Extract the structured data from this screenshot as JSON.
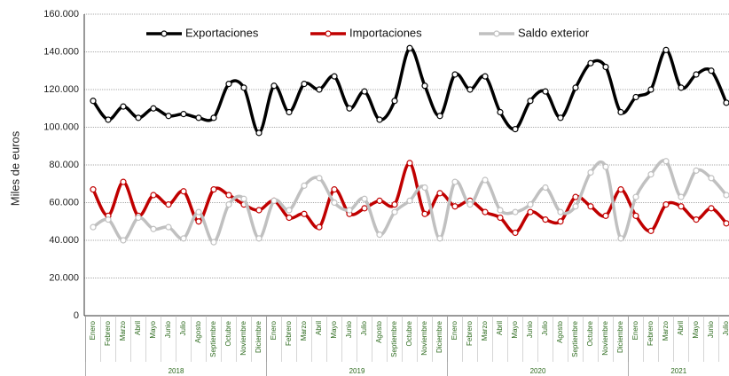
{
  "chart_data": {
    "type": "line",
    "y_label": "Miles de euros",
    "categories": [
      "Enero",
      "Febrero",
      "Marzo",
      "Abril",
      "Mayo",
      "Junio",
      "Julio",
      "Agosto",
      "Septiembre",
      "Octubre",
      "Noviembre",
      "Diciembre",
      "Enero",
      "Febrero",
      "Marzo",
      "Abril",
      "Mayo",
      "Junio",
      "Julio",
      "Agosto",
      "Septiembre",
      "Octubre",
      "Noviembre",
      "Diciembre",
      "Enero",
      "Febrero",
      "Marzo",
      "Abril",
      "Mayo",
      "Junio",
      "Julio",
      "Agosto",
      "Septiembre",
      "Octubre",
      "Noviembre",
      "Diciembre",
      "Enero",
      "Febrero",
      "Marzo",
      "Abril",
      "Mayo",
      "Junio",
      "Julio"
    ],
    "years": [
      "2018",
      "2019",
      "2020",
      "2021"
    ],
    "series": [
      {
        "name": "Exportaciones",
        "color": "#000000",
        "values": [
          114000,
          104000,
          111000,
          105000,
          110000,
          106000,
          107000,
          105000,
          105000,
          123000,
          121000,
          97000,
          122000,
          108000,
          123000,
          120000,
          127000,
          110000,
          119000,
          104000,
          114000,
          142000,
          122000,
          106000,
          128000,
          120000,
          127000,
          108000,
          99000,
          114000,
          119000,
          105000,
          121000,
          134000,
          132000,
          108000,
          116000,
          120000,
          141000,
          121000,
          128000,
          130000,
          113000
        ]
      },
      {
        "name": "Importaciones",
        "color": "#c00000",
        "values": [
          67000,
          53000,
          71000,
          53000,
          64000,
          59000,
          66000,
          50000,
          67000,
          64000,
          59000,
          56000,
          61000,
          52000,
          54000,
          47000,
          67000,
          54000,
          57000,
          61000,
          59000,
          81000,
          54000,
          65000,
          58000,
          61000,
          55000,
          52000,
          44000,
          55000,
          51000,
          50000,
          63000,
          58000,
          53000,
          67000,
          53000,
          45000,
          59000,
          58000,
          51000,
          57000,
          49000
        ]
      },
      {
        "name": "Saldo exterior",
        "color": "#c0c0c0",
        "values": [
          47000,
          51000,
          40000,
          52000,
          46000,
          47000,
          41000,
          55000,
          39000,
          59000,
          62000,
          41000,
          61000,
          56000,
          69000,
          73000,
          60000,
          56000,
          62000,
          43000,
          55000,
          61000,
          68000,
          41000,
          71000,
          59000,
          72000,
          56000,
          55000,
          59000,
          68000,
          55000,
          58000,
          76000,
          79000,
          41000,
          63000,
          75000,
          82000,
          63000,
          77000,
          73000,
          64000
        ]
      }
    ],
    "ylim": [
      0,
      160000
    ],
    "yticks": [
      0,
      {
        "value": 20000,
        "label": "20.000"
      },
      {
        "value": 40000,
        "label": "40.000"
      },
      {
        "value": 60000,
        "label": "60.000"
      },
      {
        "value": 80000,
        "label": "80.000"
      },
      {
        "value": 100000,
        "label": "100.000"
      },
      {
        "value": 120000,
        "label": "120.000"
      },
      {
        "value": 140000,
        "label": "140.000"
      },
      {
        "value": 160000,
        "label": "160.000"
      }
    ],
    "grid": true,
    "legend": "top"
  }
}
